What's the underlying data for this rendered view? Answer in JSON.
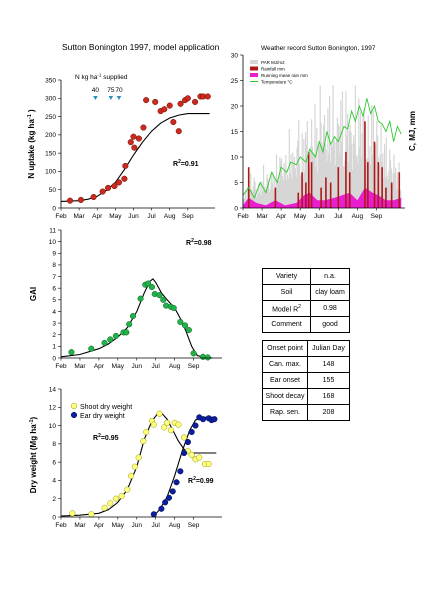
{
  "page_title": "Sutton Bonington 1997, model application",
  "weather_title": "Weather record Sutton Bonington, 1997",
  "months": [
    "Feb",
    "Mar",
    "Apr",
    "May",
    "Jun",
    "Jul",
    "Aug",
    "Sep"
  ],
  "colors": {
    "nuptake": "#cc2a1e",
    "gai": "#22b24a",
    "shoot_fill": "#ffff80",
    "shoot_stroke": "#999900",
    "ear": "#0d1f9e",
    "par": "#d6d6d6",
    "rain": "#b01818",
    "running_rain": "#e81ecf",
    "temp": "#2ec82e",
    "arrow": "#2a8fbf"
  },
  "chart_data": [
    {
      "type": "scatter",
      "name": "n_uptake",
      "ylabel": "N uptake (kg ha-1 )",
      "ylabel_main": "N uptake (kg ha",
      "ylabel_sup": "-1",
      "ylabel_end": " )",
      "ylim": [
        0,
        350
      ],
      "yticks": [
        0,
        50,
        100,
        150,
        200,
        250,
        300,
        350
      ],
      "r2_label": "R",
      "r2_value": "=0.91",
      "n_supplied_label": "N kg ha",
      "n_supplied_sup": "-1",
      "n_supplied_end": " supplied",
      "n_applications": [
        {
          "label": "40",
          "month": 2.9
        },
        {
          "label": "75",
          "month": 3.75
        },
        {
          "label": "70",
          "month": 4.2
        }
      ],
      "points": [
        [
          1.5,
          20
        ],
        [
          2.1,
          22
        ],
        [
          2.8,
          30
        ],
        [
          3.3,
          45
        ],
        [
          3.6,
          55
        ],
        [
          3.95,
          60
        ],
        [
          4.2,
          70
        ],
        [
          4.5,
          80
        ],
        [
          4.55,
          115
        ],
        [
          4.85,
          180
        ],
        [
          5.0,
          195
        ],
        [
          5.05,
          165
        ],
        [
          5.3,
          190
        ],
        [
          5.55,
          220
        ],
        [
          5.7,
          295
        ],
        [
          6.2,
          290
        ],
        [
          6.5,
          265
        ],
        [
          6.7,
          270
        ],
        [
          7.0,
          280
        ],
        [
          7.2,
          235
        ],
        [
          7.5,
          210
        ],
        [
          7.6,
          285
        ],
        [
          7.85,
          295
        ],
        [
          8.0,
          300
        ],
        [
          8.4,
          290
        ],
        [
          8.7,
          305
        ],
        [
          8.85,
          305
        ],
        [
          9.1,
          305
        ]
      ],
      "model": [
        [
          1.0,
          18
        ],
        [
          2.0,
          20
        ],
        [
          2.5,
          24
        ],
        [
          3.0,
          32
        ],
        [
          3.5,
          48
        ],
        [
          4.0,
          70
        ],
        [
          4.5,
          105
        ],
        [
          5.0,
          145
        ],
        [
          5.5,
          180
        ],
        [
          6.0,
          210
        ],
        [
          6.5,
          232
        ],
        [
          7.0,
          246
        ],
        [
          7.5,
          254
        ],
        [
          8.0,
          258
        ],
        [
          8.5,
          258
        ],
        [
          9.2,
          258
        ]
      ]
    },
    {
      "type": "line",
      "name": "weather",
      "ylabel": "C, MJ, mm",
      "ylim": [
        0,
        30
      ],
      "yticks": [
        0,
        5,
        10,
        15,
        20,
        25,
        30
      ],
      "legend": [
        "PAR MJ/m2",
        "Rainfall mm",
        "Running mean rain mm",
        "Temperature °C"
      ],
      "temperature": [
        [
          1.0,
          2.5
        ],
        [
          1.3,
          4
        ],
        [
          1.6,
          2
        ],
        [
          1.9,
          5
        ],
        [
          2.2,
          3
        ],
        [
          2.5,
          7
        ],
        [
          2.8,
          5
        ],
        [
          3.0,
          8
        ],
        [
          3.3,
          7
        ],
        [
          3.5,
          9
        ],
        [
          3.8,
          8.5
        ],
        [
          4.0,
          10
        ],
        [
          4.3,
          9
        ],
        [
          4.5,
          11.5
        ],
        [
          4.8,
          10
        ],
        [
          5.0,
          13
        ],
        [
          5.2,
          11
        ],
        [
          5.4,
          15
        ],
        [
          5.6,
          12.5
        ],
        [
          5.8,
          14
        ],
        [
          6.0,
          13
        ],
        [
          6.3,
          16
        ],
        [
          6.5,
          15.5
        ],
        [
          6.7,
          19
        ],
        [
          6.9,
          17
        ],
        [
          7.1,
          20
        ],
        [
          7.3,
          18
        ],
        [
          7.5,
          21.5
        ],
        [
          7.7,
          18.5
        ],
        [
          7.9,
          20
        ],
        [
          8.1,
          17
        ],
        [
          8.3,
          16.5
        ],
        [
          8.5,
          15
        ],
        [
          8.7,
          17
        ],
        [
          8.9,
          13
        ],
        [
          9.1,
          16
        ],
        [
          9.3,
          14.5
        ]
      ],
      "rainfall": [
        [
          1.3,
          8
        ],
        [
          2.7,
          4
        ],
        [
          3.9,
          3
        ],
        [
          4.1,
          7
        ],
        [
          4.3,
          5
        ],
        [
          4.45,
          11
        ],
        [
          4.6,
          9
        ],
        [
          5.1,
          4
        ],
        [
          5.35,
          6
        ],
        [
          5.6,
          5
        ],
        [
          6.0,
          8
        ],
        [
          6.4,
          11
        ],
        [
          6.6,
          7
        ],
        [
          7.4,
          17
        ],
        [
          7.55,
          9
        ],
        [
          7.9,
          13
        ],
        [
          8.1,
          9
        ],
        [
          8.3,
          8
        ],
        [
          8.5,
          4
        ],
        [
          8.8,
          5
        ],
        [
          9.2,
          7
        ]
      ],
      "running_rain": [
        [
          1.0,
          0.5
        ],
        [
          1.3,
          2
        ],
        [
          1.7,
          1
        ],
        [
          2.2,
          0.5
        ],
        [
          2.7,
          1.5
        ],
        [
          3.2,
          0.5
        ],
        [
          3.8,
          1
        ],
        [
          4.2,
          2.5
        ],
        [
          4.5,
          3
        ],
        [
          4.9,
          1.5
        ],
        [
          5.3,
          1.5
        ],
        [
          5.8,
          2
        ],
        [
          6.2,
          2.5
        ],
        [
          6.6,
          3
        ],
        [
          7.0,
          1.5
        ],
        [
          7.4,
          4
        ],
        [
          7.8,
          3
        ],
        [
          8.1,
          2.5
        ],
        [
          8.5,
          1.5
        ],
        [
          8.9,
          1.5
        ],
        [
          9.3,
          2
        ]
      ],
      "par_peaks": [
        [
          1.2,
          6
        ],
        [
          1.5,
          8
        ],
        [
          1.8,
          5
        ],
        [
          2.1,
          9
        ],
        [
          2.4,
          7
        ],
        [
          2.7,
          10
        ],
        [
          3.0,
          13
        ],
        [
          3.2,
          11
        ],
        [
          3.5,
          17
        ],
        [
          3.7,
          12
        ],
        [
          3.9,
          20
        ],
        [
          4.1,
          15
        ],
        [
          4.3,
          22
        ],
        [
          4.5,
          14
        ],
        [
          4.7,
          25
        ],
        [
          4.9,
          18
        ],
        [
          5.1,
          28
        ],
        [
          5.3,
          20
        ],
        [
          5.5,
          24
        ],
        [
          5.7,
          26
        ],
        [
          5.9,
          19
        ],
        [
          6.1,
          29
        ],
        [
          6.3,
          21
        ],
        [
          6.5,
          27
        ],
        [
          6.7,
          18
        ],
        [
          6.9,
          25
        ],
        [
          7.1,
          23
        ],
        [
          7.3,
          26
        ],
        [
          7.5,
          16
        ],
        [
          7.7,
          24
        ],
        [
          7.9,
          21
        ],
        [
          8.1,
          19
        ],
        [
          8.3,
          17
        ],
        [
          8.5,
          15
        ],
        [
          8.7,
          13
        ],
        [
          8.9,
          12
        ],
        [
          9.1,
          10
        ],
        [
          9.3,
          8
        ]
      ]
    },
    {
      "type": "scatter",
      "name": "gai",
      "ylabel": "GAI",
      "ylim": [
        0,
        11
      ],
      "yticks": [
        0,
        1,
        2,
        3,
        4,
        5,
        6,
        7,
        8,
        9,
        10,
        11
      ],
      "r2_label": "R",
      "r2_value": "=0.98",
      "points": [
        [
          1.55,
          0.5
        ],
        [
          2.6,
          0.8
        ],
        [
          3.3,
          1.3
        ],
        [
          3.6,
          1.6
        ],
        [
          3.9,
          1.9
        ],
        [
          4.3,
          2.2
        ],
        [
          4.45,
          2.2
        ],
        [
          4.6,
          2.9
        ],
        [
          4.8,
          3.6
        ],
        [
          5.2,
          5.1
        ],
        [
          5.45,
          6.3
        ],
        [
          5.6,
          6.4
        ],
        [
          5.8,
          6.1
        ],
        [
          5.95,
          5.5
        ],
        [
          6.2,
          5.4
        ],
        [
          6.4,
          5.0
        ],
        [
          6.55,
          4.5
        ],
        [
          6.8,
          4.4
        ],
        [
          6.95,
          4.3
        ],
        [
          7.3,
          3.1
        ],
        [
          7.55,
          2.8
        ],
        [
          7.75,
          2.4
        ],
        [
          8.0,
          0.4
        ],
        [
          8.5,
          0.1
        ],
        [
          8.75,
          0.05
        ]
      ],
      "model": [
        [
          1.0,
          0.1
        ],
        [
          2.0,
          0.3
        ],
        [
          3.0,
          0.8
        ],
        [
          3.5,
          1.2
        ],
        [
          4.0,
          1.8
        ],
        [
          4.5,
          2.6
        ],
        [
          5.0,
          4.0
        ],
        [
          5.4,
          5.6
        ],
        [
          5.7,
          6.6
        ],
        [
          5.85,
          6.8
        ],
        [
          6.0,
          6.5
        ],
        [
          6.3,
          5.6
        ],
        [
          6.6,
          5.0
        ],
        [
          7.0,
          4.3
        ],
        [
          7.3,
          3.4
        ],
        [
          7.6,
          2.3
        ],
        [
          7.9,
          1.0
        ],
        [
          8.2,
          0.2
        ],
        [
          8.6,
          0.05
        ],
        [
          9.0,
          0.0
        ]
      ]
    },
    {
      "type": "scatter",
      "name": "dry_weight",
      "ylabel": "Dry weight (Mg ha-1)",
      "ylabel_main": "Dry weight (Mg ha",
      "ylabel_sup": "-1",
      "ylabel_end": ")",
      "ylim": [
        0,
        14
      ],
      "yticks": [
        0,
        2,
        4,
        6,
        8,
        10,
        12,
        14
      ],
      "legend": [
        "Shoot dry weight",
        "Ear dry weight"
      ],
      "r2_shoot_label": "R",
      "r2_shoot_value": "=0.95",
      "r2_ear_label": "R",
      "r2_ear_value": "=0.99",
      "shoot_points": [
        [
          1.6,
          0.4
        ],
        [
          2.6,
          0.3
        ],
        [
          3.3,
          1.0
        ],
        [
          3.6,
          1.5
        ],
        [
          3.9,
          2.0
        ],
        [
          4.2,
          2.3
        ],
        [
          4.5,
          3.0
        ],
        [
          4.7,
          4.5
        ],
        [
          4.9,
          5.5
        ],
        [
          5.1,
          6.5
        ],
        [
          5.35,
          8.3
        ],
        [
          5.5,
          9.3
        ],
        [
          5.8,
          10.5
        ],
        [
          5.9,
          10.1
        ],
        [
          6.2,
          11.3
        ],
        [
          6.45,
          9.8
        ],
        [
          6.6,
          10.3
        ],
        [
          6.8,
          9.5
        ],
        [
          7.0,
          10.3
        ],
        [
          7.2,
          10.1
        ],
        [
          7.5,
          8.7
        ],
        [
          7.7,
          7.2
        ],
        [
          7.9,
          6.8
        ],
        [
          8.1,
          6.3
        ],
        [
          8.3,
          6.5
        ],
        [
          8.6,
          5.8
        ],
        [
          8.8,
          5.8
        ]
      ],
      "ear_points": [
        [
          5.9,
          0.3
        ],
        [
          6.3,
          0.9
        ],
        [
          6.5,
          1.6
        ],
        [
          6.7,
          2.1
        ],
        [
          6.9,
          2.8
        ],
        [
          7.1,
          3.8
        ],
        [
          7.3,
          5.0
        ],
        [
          7.5,
          7.0
        ],
        [
          7.7,
          8.2
        ],
        [
          7.9,
          9.3
        ],
        [
          8.1,
          10.0
        ],
        [
          8.3,
          10.9
        ],
        [
          8.5,
          10.7
        ],
        [
          8.8,
          10.8
        ],
        [
          8.95,
          10.6
        ],
        [
          9.1,
          10.7
        ]
      ],
      "shoot_model": [
        [
          1.0,
          0.1
        ],
        [
          2.0,
          0.2
        ],
        [
          3.0,
          0.4
        ],
        [
          3.5,
          0.8
        ],
        [
          4.0,
          1.6
        ],
        [
          4.5,
          3.0
        ],
        [
          5.0,
          5.5
        ],
        [
          5.4,
          8.5
        ],
        [
          5.8,
          10.5
        ],
        [
          6.1,
          11.3
        ],
        [
          6.3,
          11.4
        ],
        [
          6.6,
          10.7
        ],
        [
          6.9,
          9.5
        ],
        [
          7.2,
          8.3
        ],
        [
          7.5,
          7.4
        ],
        [
          7.8,
          7.0
        ],
        [
          8.0,
          7.0
        ],
        [
          9.2,
          7.0
        ]
      ],
      "ear_model": [
        [
          5.85,
          0.0
        ],
        [
          6.2,
          0.8
        ],
        [
          6.6,
          2.2
        ],
        [
          7.0,
          4.5
        ],
        [
          7.4,
          7.2
        ],
        [
          7.8,
          9.5
        ],
        [
          8.1,
          10.6
        ],
        [
          8.4,
          10.9
        ],
        [
          9.2,
          10.9
        ]
      ]
    }
  ],
  "table1": [
    [
      "Variety",
      "n.a."
    ],
    [
      "Soil",
      "clay loam"
    ],
    [
      "Model R",
      "0.98"
    ],
    [
      "Comment",
      "good"
    ]
  ],
  "table2": [
    [
      "Onset point",
      "Julian Day"
    ],
    [
      "Can. max.",
      "148"
    ],
    [
      "Ear onset",
      "155"
    ],
    [
      "Shoot decay",
      "168"
    ],
    [
      "Rap. sen.",
      "208"
    ]
  ]
}
